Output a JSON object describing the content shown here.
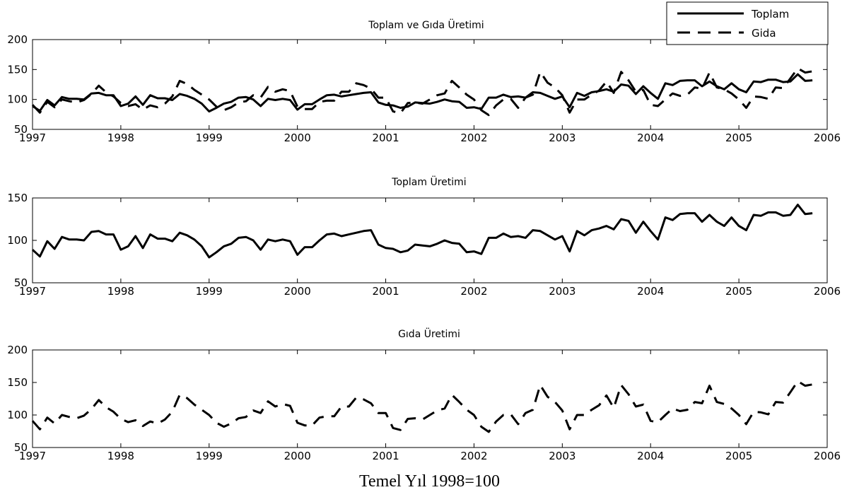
{
  "footer": "Temel Yıl 1998=100",
  "chart_data": [
    {
      "type": "line",
      "title": "Toplam ve Gıda Üretimi",
      "x_ticks": [
        "1997",
        "1998",
        "1999",
        "2000",
        "2001",
        "2002",
        "2003",
        "2004",
        "2005",
        "2006"
      ],
      "y_ticks": [
        "50",
        "100",
        "150",
        "200"
      ],
      "xlim": [
        1997,
        2006
      ],
      "ylim": [
        50,
        200
      ],
      "grid": false,
      "legend": {
        "placement": "top-right",
        "entries": [
          "Toplam",
          "Gida"
        ]
      },
      "series": [
        {
          "name": "Toplam",
          "style": "solid",
          "ref": "toplam"
        },
        {
          "name": "Gida",
          "style": "dashed",
          "ref": "gida"
        }
      ]
    },
    {
      "type": "line",
      "title": "Toplam Üretimi",
      "x_ticks": [
        "1997",
        "1998",
        "1999",
        "2000",
        "2001",
        "2002",
        "2003",
        "2004",
        "2005",
        "2006"
      ],
      "y_ticks": [
        "50",
        "100",
        "150"
      ],
      "xlim": [
        1997,
        2006
      ],
      "ylim": [
        50,
        150
      ],
      "grid": false,
      "series": [
        {
          "style": "solid",
          "ref": "toplam"
        }
      ]
    },
    {
      "type": "line",
      "title": "Gıda Üretimi",
      "x_ticks": [
        "1997",
        "1998",
        "1999",
        "2000",
        "2001",
        "2002",
        "2003",
        "2004",
        "2005",
        "2006"
      ],
      "y_ticks": [
        "50",
        "100",
        "150",
        "200"
      ],
      "xlim": [
        1997,
        2006
      ],
      "ylim": [
        50,
        200
      ],
      "grid": false,
      "series": [
        {
          "style": "dashed",
          "ref": "gida"
        }
      ]
    }
  ],
  "series_values": {
    "x": [
      1997.0,
      1997.083,
      1997.167,
      1997.25,
      1997.333,
      1997.417,
      1997.5,
      1997.583,
      1997.667,
      1997.75,
      1997.833,
      1997.917,
      1998.0,
      1998.083,
      1998.167,
      1998.25,
      1998.333,
      1998.417,
      1998.5,
      1998.583,
      1998.667,
      1998.75,
      1998.833,
      1998.917,
      1999.0,
      1999.083,
      1999.167,
      1999.25,
      1999.333,
      1999.417,
      1999.5,
      1999.583,
      1999.667,
      1999.75,
      1999.833,
      1999.917,
      2000.0,
      2000.083,
      2000.167,
      2000.25,
      2000.333,
      2000.417,
      2000.5,
      2000.583,
      2000.667,
      2000.75,
      2000.833,
      2000.917,
      2001.0,
      2001.083,
      2001.167,
      2001.25,
      2001.333,
      2001.417,
      2001.5,
      2001.583,
      2001.667,
      2001.75,
      2001.833,
      2001.917,
      2002.0,
      2002.083,
      2002.167,
      2002.25,
      2002.333,
      2002.417,
      2002.5,
      2002.583,
      2002.667,
      2002.75,
      2002.833,
      2002.917,
      2003.0,
      2003.083,
      2003.167,
      2003.25,
      2003.333,
      2003.417,
      2003.5,
      2003.583,
      2003.667,
      2003.75,
      2003.833,
      2003.917,
      2004.0,
      2004.083,
      2004.167,
      2004.25,
      2004.333,
      2004.417,
      2004.5,
      2004.583,
      2004.667,
      2004.75,
      2004.833,
      2004.917,
      2005.0,
      2005.083,
      2005.167,
      2005.25,
      2005.333,
      2005.417,
      2005.5,
      2005.583,
      2005.667,
      2005.75,
      2005.833
    ],
    "toplam": [
      89,
      81,
      99,
      90,
      104,
      101,
      101,
      100,
      110,
      111,
      107,
      107,
      89,
      93,
      105,
      91,
      107,
      102,
      102,
      99,
      109,
      106,
      101,
      93,
      80,
      86,
      93,
      96,
      103,
      104,
      100,
      89,
      101,
      99,
      101,
      99,
      83,
      92,
      92,
      100,
      107,
      108,
      105,
      107,
      109,
      111,
      112,
      95,
      91,
      90,
      86,
      88,
      95,
      94,
      93,
      96,
      100,
      97,
      96,
      86,
      87,
      84,
      103,
      103,
      108,
      104,
      105,
      103,
      112,
      111,
      106,
      101,
      105,
      87,
      111,
      106,
      112,
      114,
      117,
      113,
      125,
      123,
      109,
      122,
      111,
      101,
      127,
      124,
      131,
      132,
      132,
      122,
      130,
      122,
      117,
      127,
      117,
      112,
      130,
      129,
      133,
      133,
      129,
      130,
      142,
      131,
      132
    ],
    "gida": [
      91,
      78,
      96,
      87,
      100,
      97,
      95,
      99,
      109,
      123,
      112,
      105,
      94,
      89,
      92,
      83,
      90,
      87,
      93,
      105,
      131,
      126,
      116,
      108,
      100,
      88,
      82,
      87,
      95,
      97,
      107,
      103,
      121,
      113,
      117,
      114,
      88,
      84,
      84,
      96,
      98,
      98,
      113,
      113,
      127,
      124,
      118,
      103,
      103,
      80,
      77,
      94,
      95,
      93,
      100,
      107,
      110,
      131,
      120,
      108,
      100,
      82,
      74,
      90,
      100,
      101,
      86,
      103,
      108,
      146,
      128,
      120,
      107,
      78,
      100,
      100,
      108,
      115,
      130,
      111,
      146,
      132,
      113,
      116,
      91,
      89,
      100,
      110,
      106,
      108,
      120,
      118,
      145,
      120,
      117,
      110,
      100,
      86,
      105,
      104,
      101,
      120,
      119,
      135,
      152,
      145,
      147
    ]
  }
}
